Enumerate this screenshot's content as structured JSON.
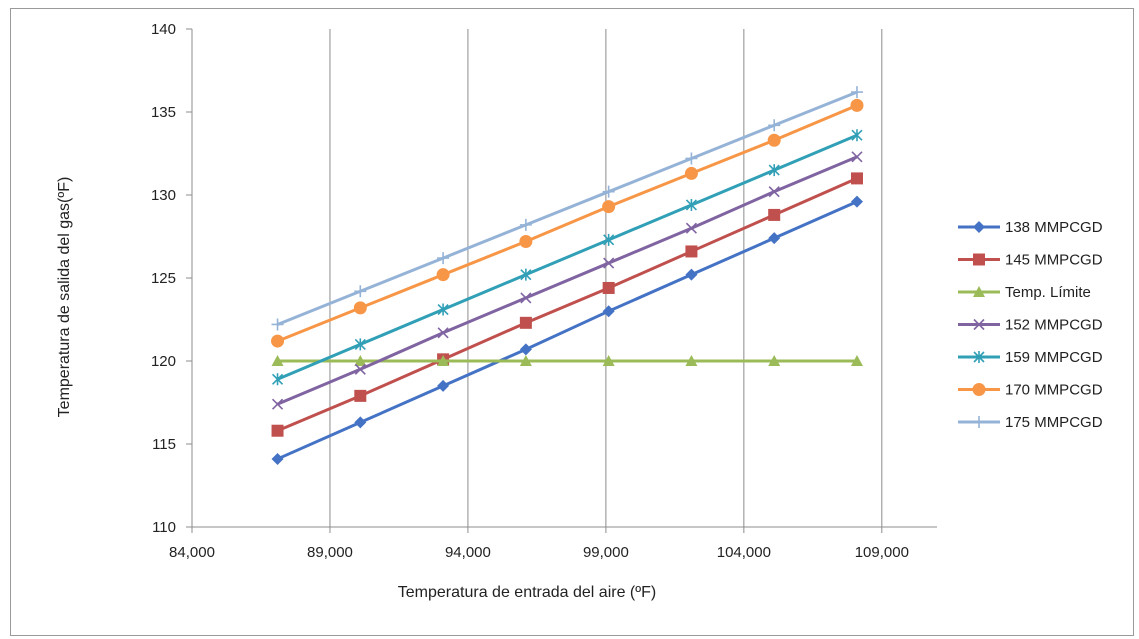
{
  "chart_data": {
    "type": "line",
    "title": "",
    "xlabel": "Temperatura de entrada del aire (ºF)",
    "ylabel": "Temperatura de salida del gas(ºF)",
    "xlim": [
      84000,
      111000
    ],
    "ylim": [
      110,
      140
    ],
    "xticks": [
      84000,
      89000,
      94000,
      99000,
      104000,
      109000
    ],
    "xtick_labels": [
      "84,000",
      "89,000",
      "94,000",
      "99,000",
      "104,000",
      "109,000"
    ],
    "yticks": [
      110,
      115,
      120,
      125,
      130,
      135,
      140
    ],
    "ytick_labels": [
      "110",
      "115",
      "120",
      "125",
      "130",
      "135",
      "140"
    ],
    "x": [
      87100,
      90100,
      93100,
      96100,
      99100,
      102100,
      105100,
      108100
    ],
    "grid": "vertical",
    "legend_position": "right",
    "series": [
      {
        "name": "138 MMPCGD",
        "color": "#4472C4",
        "marker": "diamond",
        "values": [
          114.1,
          116.3,
          118.5,
          120.7,
          123.0,
          125.2,
          127.4,
          129.6
        ]
      },
      {
        "name": "145 MMPCGD",
        "color": "#C0504D",
        "marker": "square",
        "values": [
          115.8,
          117.9,
          120.1,
          122.3,
          124.4,
          126.6,
          128.8,
          131.0
        ]
      },
      {
        "name": "Temp. Límite",
        "color": "#9BBB59",
        "marker": "triangle",
        "values": [
          120,
          120,
          120,
          120,
          120,
          120,
          120,
          120
        ]
      },
      {
        "name": "152 MMPCGD",
        "color": "#8064A2",
        "marker": "x",
        "values": [
          117.4,
          119.5,
          121.7,
          123.8,
          125.9,
          128.0,
          130.2,
          132.3
        ]
      },
      {
        "name": "159 MMPCGD",
        "color": "#31A0B7",
        "marker": "asterisk",
        "values": [
          118.9,
          121.0,
          123.1,
          125.2,
          127.3,
          129.4,
          131.5,
          133.6
        ]
      },
      {
        "name": "170 MMPCGD",
        "color": "#F79646",
        "marker": "circle",
        "values": [
          121.2,
          123.2,
          125.2,
          127.2,
          129.3,
          131.3,
          133.3,
          135.4
        ]
      },
      {
        "name": "175 MMPCGD",
        "color": "#95B3D7",
        "marker": "plus",
        "values": [
          122.2,
          124.2,
          126.2,
          128.2,
          130.2,
          132.2,
          134.2,
          136.2
        ]
      }
    ]
  }
}
